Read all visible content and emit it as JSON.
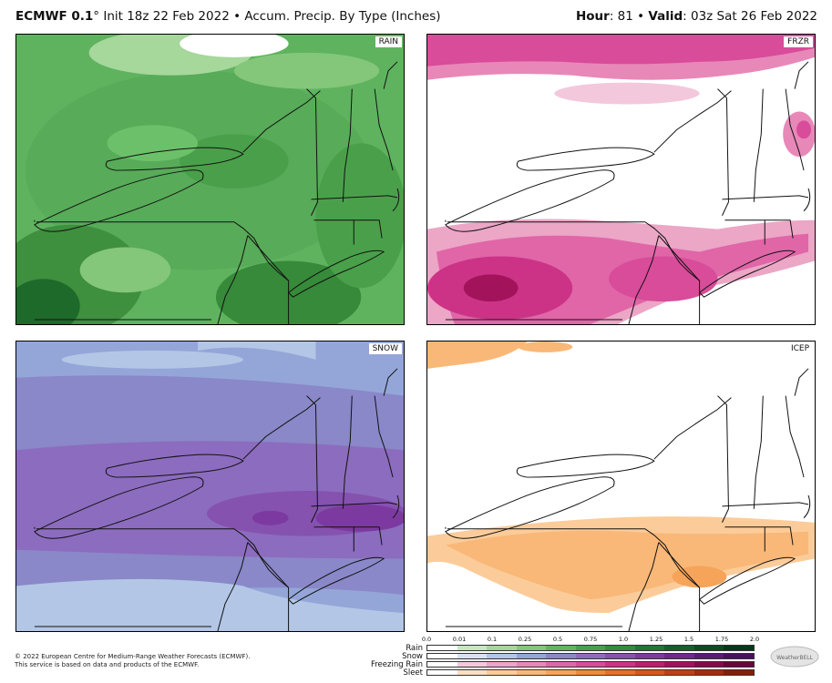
{
  "header": {
    "model": "ECMWF 0.1",
    "degree": "°",
    "init": " Init 18z 22 Feb 2022",
    "bullet": " • ",
    "product": "Accum. Precip. By Type (Inches)",
    "hour_label": "Hour",
    "hour_value": ": 81",
    "valid_label": "Valid",
    "valid_value": ": 03z Sat 26 Feb 2022"
  },
  "panels": [
    {
      "label": "RAIN"
    },
    {
      "label": "FRZR"
    },
    {
      "label": "SNOW"
    },
    {
      "label": "ICEP"
    }
  ],
  "legend": {
    "ticks": [
      "0.0",
      "0.01",
      "0.1",
      "0.25",
      "0.5",
      "0.75",
      "1.0",
      "1.25",
      "1.5",
      "1.75",
      "2.0"
    ],
    "rows": [
      {
        "label": "Rain",
        "colors": [
          "#ffffff",
          "#c8e6c0",
          "#a6d79b",
          "#84c77a",
          "#63b45d",
          "#4aa04a",
          "#368a3a",
          "#257532",
          "#14602a",
          "#0a4d20",
          "#053a16"
        ]
      },
      {
        "label": "Snow",
        "colors": [
          "#ffffff",
          "#d9e2f0",
          "#b3c6e6",
          "#94a6d8",
          "#8a88c8",
          "#8c6cbe",
          "#8552b0",
          "#7c3aa0",
          "#6e2890",
          "#5a1a78",
          "#46105e"
        ]
      },
      {
        "label": "Freezing Rain",
        "colors": [
          "#ffffff",
          "#f4c8dc",
          "#eca6c6",
          "#e888b8",
          "#e066a8",
          "#d84c9a",
          "#cc3386",
          "#bb2070",
          "#a2135c",
          "#860a48",
          "#6a0536"
        ]
      },
      {
        "label": "Sleet",
        "colors": [
          "#ffffff",
          "#fde0c0",
          "#fbcc9a",
          "#f9b878",
          "#f6a45a",
          "#f08a3a",
          "#e87028",
          "#d8561c",
          "#c04014",
          "#a22c0c",
          "#822006"
        ]
      }
    ]
  },
  "footer": {
    "line1": "© 2022 European Centre for Medium-Range Weather Forecasts (ECMWF).",
    "line2": "This service is based on data and products of the ECMWF.",
    "logo_text": "WeatherBELL"
  },
  "colors": {
    "rain_base": "#6fbf6f",
    "frzr": "#e0569e",
    "snow_base": "#8a86c8",
    "icep": "#f9b878"
  }
}
